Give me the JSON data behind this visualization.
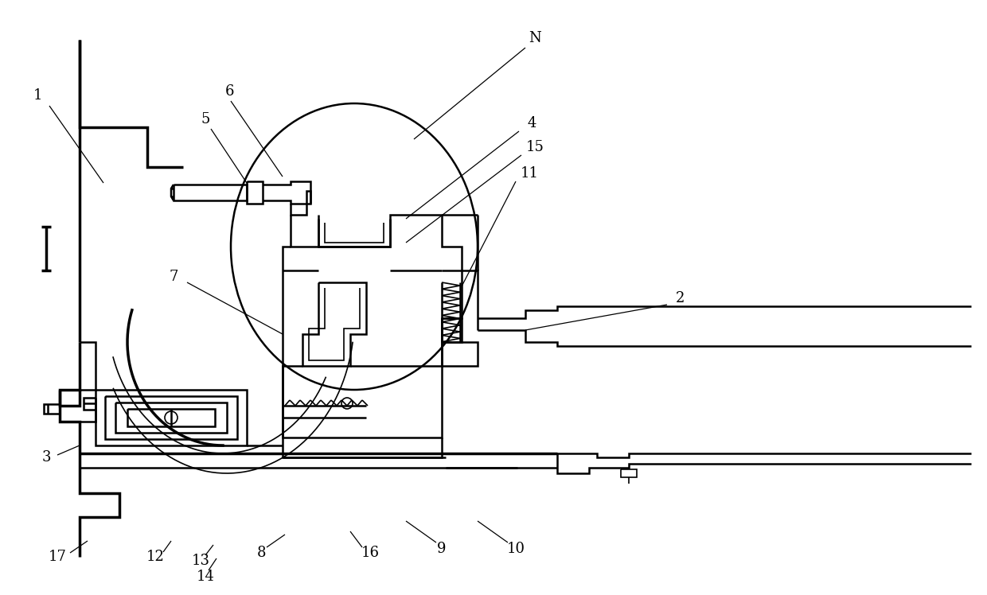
{
  "bg_color": "#ffffff",
  "lc": "#000000",
  "lw": 1.8,
  "lw2": 2.5,
  "lw_t": 1.2,
  "lw_a": 0.9,
  "fs": 13
}
